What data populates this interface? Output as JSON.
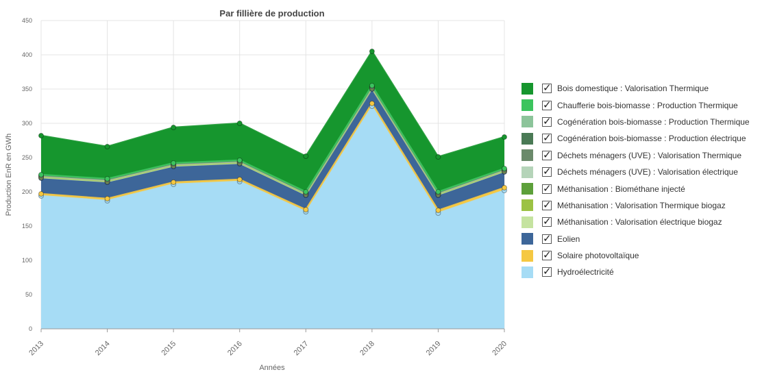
{
  "chart_data": {
    "type": "area",
    "stacked": true,
    "title": "Par fillière de production",
    "xlabel": "Années",
    "ylabel": "Production EnR en GWh",
    "ylim": [
      0,
      450
    ],
    "yticks": [
      0,
      50,
      100,
      150,
      200,
      250,
      300,
      350,
      400,
      450
    ],
    "categories": [
      "2013",
      "2014",
      "2015",
      "2016",
      "2017",
      "2018",
      "2019",
      "2020"
    ],
    "grid": true,
    "legend_position": "right",
    "series": [
      {
        "name": "Hydroélectricité",
        "color": "#a6dcf5",
        "values": [
          194,
          187,
          211,
          215,
          171,
          325,
          169,
          202
        ]
      },
      {
        "name": "Solaire photovoltaïque",
        "color": "#f5c842",
        "values": [
          3,
          3,
          3,
          3,
          3,
          4,
          4,
          4
        ]
      },
      {
        "name": "Eolien",
        "color": "#3d6699",
        "values": [
          23,
          24,
          23,
          23,
          21,
          21,
          22,
          23
        ]
      },
      {
        "name": "Méthanisation : Valorisation électrique biogaz",
        "color": "#c5e3a0",
        "values": [
          1,
          1,
          1,
          1,
          1,
          1,
          1,
          1
        ]
      },
      {
        "name": "Méthanisation : Valorisation Thermique biogaz",
        "color": "#9cc244",
        "values": [
          1,
          1,
          1,
          1,
          1,
          1,
          1,
          1
        ]
      },
      {
        "name": "Méthanisation : Biométhane injecté",
        "color": "#5da03a",
        "values": [
          0,
          0,
          0,
          0,
          0,
          0,
          0,
          0
        ]
      },
      {
        "name": "Déchets ménagers (UVE) : Valorisation électrique",
        "color": "#b5d4b9",
        "values": [
          1,
          1,
          1,
          1,
          1,
          1,
          1,
          1
        ]
      },
      {
        "name": "Déchets ménagers (UVE) : Valorisation Thermique",
        "color": "#6b8a6b",
        "values": [
          1,
          1,
          1,
          1,
          1,
          1,
          1,
          1
        ]
      },
      {
        "name": "Cogénération bois-biomasse : Production électrique",
        "color": "#4a7a55",
        "values": [
          0,
          0,
          0,
          0,
          0,
          0,
          0,
          0
        ]
      },
      {
        "name": "Cogénération bois-biomasse : Production Thermique",
        "color": "#8cc49a",
        "values": [
          0,
          0,
          0,
          0,
          0,
          0,
          0,
          0
        ]
      },
      {
        "name": "Chaufferie bois-biomasse : Production Thermique",
        "color": "#3cc45e",
        "values": [
          1,
          1,
          1,
          1,
          1,
          1,
          1,
          1
        ]
      },
      {
        "name": "Bois domestique : Valorisation Thermique",
        "color": "#16962e",
        "values": [
          57,
          47,
          52,
          54,
          52,
          50,
          51,
          46
        ]
      }
    ]
  },
  "legend": [
    {
      "label": "Bois domestique : Valorisation Thermique",
      "color": "#16962e"
    },
    {
      "label": "Chaufferie bois-biomasse : Production Thermique",
      "color": "#3cc45e"
    },
    {
      "label": "Cogénération bois-biomasse : Production Thermique",
      "color": "#8cc49a"
    },
    {
      "label": "Cogénération bois-biomasse : Production électrique",
      "color": "#4a7a55"
    },
    {
      "label": "Déchets ménagers (UVE) : Valorisation Thermique",
      "color": "#6b8a6b"
    },
    {
      "label": "Déchets ménagers (UVE) : Valorisation électrique",
      "color": "#b5d4b9"
    },
    {
      "label": "Méthanisation : Biométhane injecté",
      "color": "#5da03a"
    },
    {
      "label": "Méthanisation : Valorisation Thermique biogaz",
      "color": "#9cc244"
    },
    {
      "label": "Méthanisation : Valorisation électrique biogaz",
      "color": "#c5e3a0"
    },
    {
      "label": "Eolien",
      "color": "#3d6699"
    },
    {
      "label": "Solaire photovoltaïque",
      "color": "#f5c842"
    },
    {
      "label": "Hydroélectricité",
      "color": "#a6dcf5"
    }
  ]
}
